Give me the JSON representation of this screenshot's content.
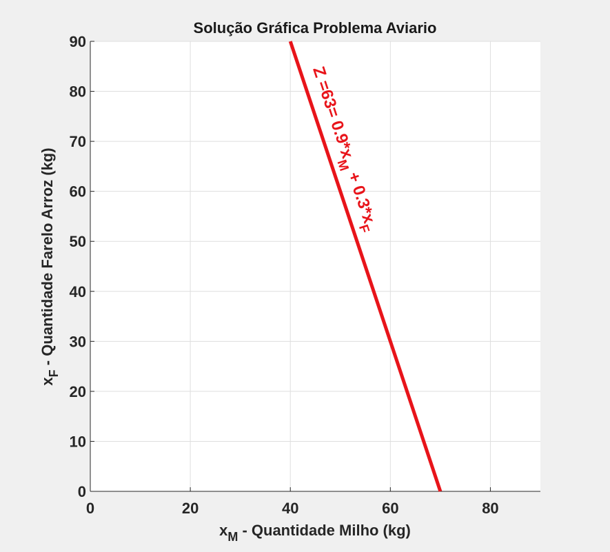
{
  "chart_data": {
    "type": "line",
    "title": "Solução Gráfica Problema Aviario",
    "xlabel": {
      "main": "x",
      "sub": "M",
      "rest": " - Quantidade Milho (kg)"
    },
    "ylabel": {
      "main": "x",
      "sub": "F",
      "rest": " - Quantidade Farelo Arroz (kg)"
    },
    "xlim": [
      0,
      90
    ],
    "ylim": [
      0,
      90
    ],
    "x_ticks": [
      0,
      20,
      40,
      60,
      80
    ],
    "y_ticks": [
      0,
      10,
      20,
      30,
      40,
      50,
      60,
      70,
      80,
      90
    ],
    "grid": true,
    "series": [
      {
        "x": [
          40,
          70
        ],
        "y": [
          90,
          0
        ],
        "color": "#e8141a"
      }
    ],
    "annotations": [
      {
        "parts": [
          {
            "text": "Z =63= 0.9*x",
            "sub": false
          },
          {
            "text": "M",
            "sub": true
          },
          {
            "text": " + 0.3*x",
            "sub": false
          },
          {
            "text": "F",
            "sub": true
          }
        ],
        "x": 44.5,
        "y": 84.5,
        "color": "#e8141a"
      }
    ]
  }
}
